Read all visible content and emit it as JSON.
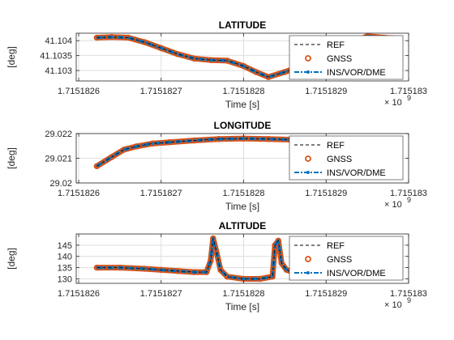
{
  "colors": {
    "ref": "#000000",
    "gnss": "#D95319",
    "ins": "#0072BD",
    "grid": "#dedede",
    "axis": "#262626"
  },
  "legend": {
    "placement": "top-right"
  },
  "chart_data": [
    {
      "type": "line",
      "title": "LATITUDE",
      "xlabel": "Time [s]",
      "ylabel": "[deg]",
      "x_exponent": "× 10",
      "x_exponent_power": "9",
      "xlim": [
        1715182597,
        1715183000
      ],
      "ylim": [
        41.10265,
        41.10425
      ],
      "xticks": [
        1715182600,
        1715182700,
        1715182800,
        1715182900,
        1715183000
      ],
      "xtick_labels": [
        "1.7151826",
        "1.7151827",
        "1.7151828",
        "1.7151829",
        "1.715183"
      ],
      "yticks": [
        41.103,
        41.1035,
        41.104
      ],
      "ytick_labels": [
        "41.103",
        "41.1035",
        "41.104"
      ],
      "grid": true,
      "series": [
        {
          "name": "REF",
          "style": "dashed",
          "x": [
            1715182622,
            1715182640,
            1715182660,
            1715182680,
            1715182700,
            1715182720,
            1715182740,
            1715182760,
            1715182780,
            1715182800,
            1715182815,
            1715182830,
            1715182850,
            1715182870,
            1715182890,
            1715182910,
            1715182930,
            1715182950,
            1715182970,
            1715182980
          ],
          "y": [
            41.1041,
            41.10412,
            41.1041,
            41.10395,
            41.10375,
            41.10355,
            41.1034,
            41.10335,
            41.10333,
            41.10315,
            41.10295,
            41.10278,
            41.10295,
            41.10315,
            41.10335,
            41.1036,
            41.1039,
            41.10415,
            41.1041,
            41.10408
          ]
        },
        {
          "name": "GNSS",
          "style": "markers",
          "x": [
            1715182622,
            1715182640,
            1715182660,
            1715182680,
            1715182700,
            1715182720,
            1715182740,
            1715182760,
            1715182780,
            1715182800,
            1715182815,
            1715182830,
            1715182850,
            1715182870,
            1715182890,
            1715182910,
            1715182930,
            1715182950,
            1715182970,
            1715182980
          ],
          "y": [
            41.1041,
            41.10412,
            41.1041,
            41.10395,
            41.10375,
            41.10355,
            41.1034,
            41.10335,
            41.10333,
            41.10315,
            41.10295,
            41.10278,
            41.10295,
            41.10315,
            41.10335,
            41.1036,
            41.1039,
            41.10415,
            41.1041,
            41.10408
          ]
        },
        {
          "name": "INS/VOR/DME",
          "style": "dash-dot",
          "x": [
            1715182622,
            1715182640,
            1715182660,
            1715182680,
            1715182700,
            1715182720,
            1715182740,
            1715182760,
            1715182780,
            1715182800,
            1715182815,
            1715182830,
            1715182850,
            1715182870,
            1715182890,
            1715182910,
            1715182930,
            1715182950,
            1715182970,
            1715182980
          ],
          "y": [
            41.1041,
            41.10412,
            41.1041,
            41.10395,
            41.10375,
            41.10355,
            41.1034,
            41.10335,
            41.10333,
            41.10315,
            41.10295,
            41.10278,
            41.10295,
            41.10315,
            41.10335,
            41.1036,
            41.1039,
            41.10415,
            41.1041,
            41.10408
          ]
        }
      ]
    },
    {
      "type": "line",
      "title": "LONGITUDE",
      "xlabel": "Time [s]",
      "ylabel": "[deg]",
      "x_exponent": "× 10",
      "x_exponent_power": "9",
      "xlim": [
        1715182597,
        1715183000
      ],
      "ylim": [
        29.02,
        29.022
      ],
      "xticks": [
        1715182600,
        1715182700,
        1715182800,
        1715182900,
        1715183000
      ],
      "xtick_labels": [
        "1.7151826",
        "1.7151827",
        "1.7151828",
        "1.7151829",
        "1.715183"
      ],
      "yticks": [
        29.02,
        29.021,
        29.022
      ],
      "ytick_labels": [
        "29.02",
        "29.021",
        "29.022"
      ],
      "grid": true,
      "series": [
        {
          "name": "REF",
          "style": "dashed",
          "x": [
            1715182622,
            1715182640,
            1715182655,
            1715182670,
            1715182690,
            1715182710,
            1715182740,
            1715182770,
            1715182800,
            1715182830,
            1715182860,
            1715182890,
            1715182920,
            1715182950,
            1715182980
          ],
          "y": [
            29.02068,
            29.02105,
            29.02135,
            29.02148,
            29.0216,
            29.02165,
            29.02172,
            29.02178,
            29.0218,
            29.02178,
            29.02175,
            29.02172,
            29.02168,
            29.02165,
            29.02162
          ]
        },
        {
          "name": "GNSS",
          "style": "markers",
          "x": [
            1715182622,
            1715182640,
            1715182655,
            1715182670,
            1715182690,
            1715182710,
            1715182740,
            1715182770,
            1715182800,
            1715182830,
            1715182860,
            1715182890,
            1715182920,
            1715182950,
            1715182980
          ],
          "y": [
            29.02068,
            29.02105,
            29.02135,
            29.02148,
            29.0216,
            29.02165,
            29.02172,
            29.02178,
            29.0218,
            29.02178,
            29.02175,
            29.02172,
            29.02168,
            29.02165,
            29.02162
          ]
        },
        {
          "name": "INS/VOR/DME",
          "style": "dash-dot",
          "x": [
            1715182622,
            1715182640,
            1715182655,
            1715182670,
            1715182690,
            1715182710,
            1715182740,
            1715182770,
            1715182800,
            1715182830,
            1715182860,
            1715182890,
            1715182920,
            1715182950,
            1715182980
          ],
          "y": [
            29.02068,
            29.02105,
            29.02135,
            29.02148,
            29.0216,
            29.02165,
            29.02172,
            29.02178,
            29.0218,
            29.02178,
            29.02175,
            29.02172,
            29.02168,
            29.02165,
            29.02162
          ]
        }
      ]
    },
    {
      "type": "line",
      "title": "ALTITUDE",
      "xlabel": "Time [s]",
      "ylabel": "[deg]",
      "x_exponent": "× 10",
      "x_exponent_power": "9",
      "xlim": [
        1715182597,
        1715183000
      ],
      "ylim": [
        128,
        150
      ],
      "xticks": [
        1715182600,
        1715182700,
        1715182800,
        1715182900,
        1715183000
      ],
      "xtick_labels": [
        "1.7151826",
        "1.7151827",
        "1.7151828",
        "1.7151829",
        "1.715183"
      ],
      "yticks": [
        130,
        135,
        140,
        145
      ],
      "ytick_labels": [
        "130",
        "135",
        "140",
        "145"
      ],
      "grid": true,
      "series": [
        {
          "name": "REF",
          "style": "dashed",
          "x": [
            1715182622,
            1715182650,
            1715182680,
            1715182700,
            1715182720,
            1715182740,
            1715182755,
            1715182760,
            1715182763,
            1715182767,
            1715182772,
            1715182780,
            1715182800,
            1715182820,
            1715182835,
            1715182838,
            1715182842,
            1715182846,
            1715182852,
            1715182860,
            1715182880,
            1715182900,
            1715182920,
            1715182950,
            1715182980
          ],
          "y": [
            135,
            135,
            134.5,
            134,
            133.5,
            133,
            133,
            138,
            148,
            142,
            134,
            131,
            130,
            130,
            131,
            145,
            147,
            137,
            134,
            133,
            133,
            133.5,
            133,
            133,
            133
          ]
        },
        {
          "name": "GNSS",
          "style": "markers",
          "x": [
            1715182622,
            1715182650,
            1715182680,
            1715182700,
            1715182720,
            1715182740,
            1715182755,
            1715182760,
            1715182763,
            1715182767,
            1715182772,
            1715182780,
            1715182800,
            1715182820,
            1715182835,
            1715182838,
            1715182842,
            1715182846,
            1715182852,
            1715182860,
            1715182880,
            1715182900,
            1715182920,
            1715182950,
            1715182980
          ],
          "y": [
            135,
            135,
            134.5,
            134,
            133.5,
            133,
            133,
            138,
            148,
            142,
            134,
            131,
            130,
            130,
            131,
            145,
            147,
            137,
            134,
            133,
            133,
            133.5,
            133,
            133,
            133
          ]
        },
        {
          "name": "INS/VOR/DME",
          "style": "dash-dot",
          "x": [
            1715182622,
            1715182650,
            1715182680,
            1715182700,
            1715182720,
            1715182740,
            1715182755,
            1715182760,
            1715182763,
            1715182767,
            1715182772,
            1715182780,
            1715182800,
            1715182820,
            1715182835,
            1715182838,
            1715182842,
            1715182846,
            1715182852,
            1715182860,
            1715182880,
            1715182900,
            1715182920,
            1715182950,
            1715182980
          ],
          "y": [
            135,
            135,
            134.5,
            134,
            133.5,
            133,
            133,
            138,
            148,
            142,
            134,
            131,
            130,
            130,
            131,
            145,
            147,
            137,
            134,
            133,
            133,
            133.5,
            133,
            133,
            133
          ]
        }
      ]
    }
  ]
}
